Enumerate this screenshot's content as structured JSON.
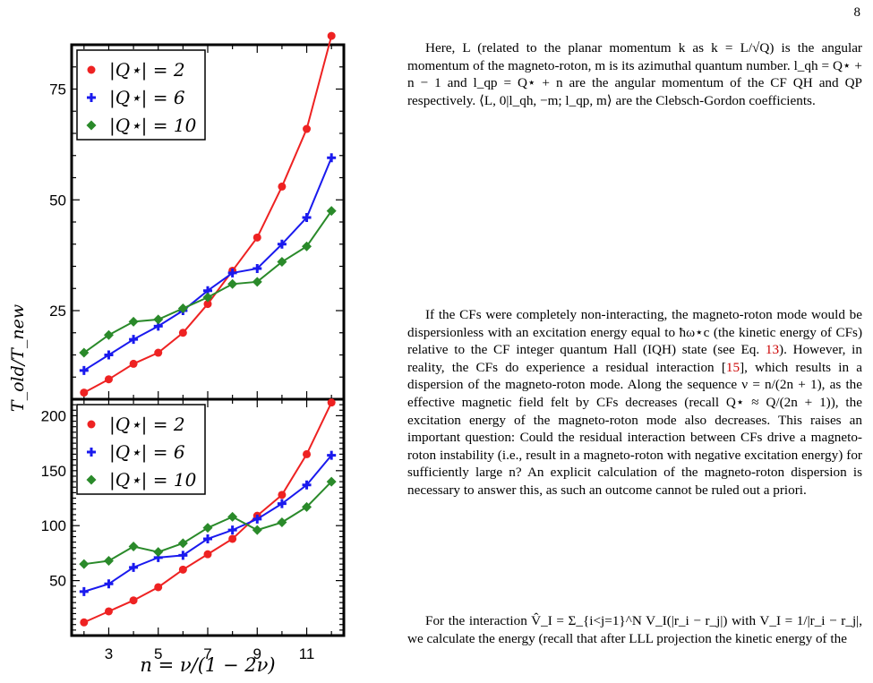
{
  "page_number": "8",
  "figure": {
    "y_axis_label": "T_old/T_new",
    "x_axis_label": "n = ν/(1 − 2ν)",
    "legend": [
      "|Q⋆| = 2",
      "|Q⋆| = 6",
      "|Q⋆| = 10"
    ],
    "colors": {
      "q2": "#ee2222",
      "q6": "#1a1aee",
      "q10": "#2a8a2a",
      "axis": "#000000"
    }
  },
  "chart_data": [
    {
      "type": "line",
      "panel": "top",
      "x": [
        2,
        3,
        4,
        5,
        6,
        7,
        8,
        9,
        10,
        11,
        12
      ],
      "xlim": [
        1.5,
        12.5
      ],
      "ylim": [
        5,
        85
      ],
      "yticks": [
        25,
        50,
        75
      ],
      "series": [
        {
          "name": "|Q⋆| = 2",
          "marker": "circle",
          "values": [
            6.5,
            9.5,
            13,
            15.5,
            20,
            26.5,
            34,
            41.5,
            53,
            66,
            87
          ]
        },
        {
          "name": "|Q⋆| = 6",
          "marker": "plus",
          "values": [
            11.5,
            15,
            18.5,
            21.5,
            25,
            29.5,
            33.5,
            34.5,
            40,
            46,
            59.5
          ]
        },
        {
          "name": "|Q⋆| = 10",
          "marker": "diamond",
          "values": [
            15.5,
            19.5,
            22.5,
            23,
            25.5,
            28,
            31,
            31.5,
            36,
            39.5,
            47.5
          ]
        }
      ]
    },
    {
      "type": "line",
      "panel": "bottom",
      "x": [
        2,
        3,
        4,
        5,
        6,
        7,
        8,
        9,
        10,
        11,
        12
      ],
      "xticks": [
        3,
        5,
        7,
        9,
        11
      ],
      "xlim": [
        1.5,
        12.5
      ],
      "ylim": [
        0,
        215
      ],
      "yticks": [
        50,
        100,
        150,
        200
      ],
      "series": [
        {
          "name": "|Q⋆| = 2",
          "marker": "circle",
          "values": [
            12,
            22,
            32,
            44,
            60,
            74,
            88,
            109,
            128,
            165,
            212
          ]
        },
        {
          "name": "|Q⋆| = 6",
          "marker": "plus",
          "values": [
            40,
            47,
            62,
            71,
            73,
            88,
            96,
            106,
            120,
            137,
            164
          ]
        },
        {
          "name": "|Q⋆| = 10",
          "marker": "diamond",
          "values": [
            65,
            68,
            81,
            76,
            84,
            98,
            108,
            96,
            103,
            117,
            140
          ]
        }
      ]
    }
  ],
  "text": {
    "para1": "Here, L (related to the planar momentum k as k = L/√Q) is the angular momentum of the magneto-roton, m is its azimuthal quantum number. l_qh = Q⋆ + n − 1 and l_qp = Q⋆ + n are the angular momentum of the CF QH and QP respectively. ⟨L, 0|l_qh, −m; l_qp, m⟩ are the Clebsch-Gordon coefficients.",
    "para2_a": "If the CFs were completely non-interacting, the magneto-roton mode would be dispersionless with an excitation energy equal to ħω⋆c (the kinetic energy of CFs) relative to the CF integer quantum Hall (IQH) state (see Eq. ",
    "para2_eq": "13",
    "para2_b": "). However, in reality, the CFs do experience a residual interaction [",
    "para2_cite": "15",
    "para2_c": "], which results in a dispersion of the magneto-roton mode. Along the sequence ν = n/(2n + 1), as the effective magnetic field felt by CFs decreases (recall Q⋆ ≈ Q/(2n + 1)), the excitation energy of the magneto-roton mode also decreases. This raises an important question: Could the residual interaction between CFs drive a magneto-roton instability (i.e., result in a magneto-roton with negative excitation energy) for sufficiently large n? An explicit calculation of the magneto-roton dispersion is necessary to answer this, as such an outcome cannot be ruled out a priori.",
    "para3": "For the interaction V̂_I = Σ_{i<j=1}^N V_I(|r_i − r_j|) with V_I = 1/|r_i − r_j|, we calculate the energy (recall that after LLL projection the kinetic energy of the"
  }
}
